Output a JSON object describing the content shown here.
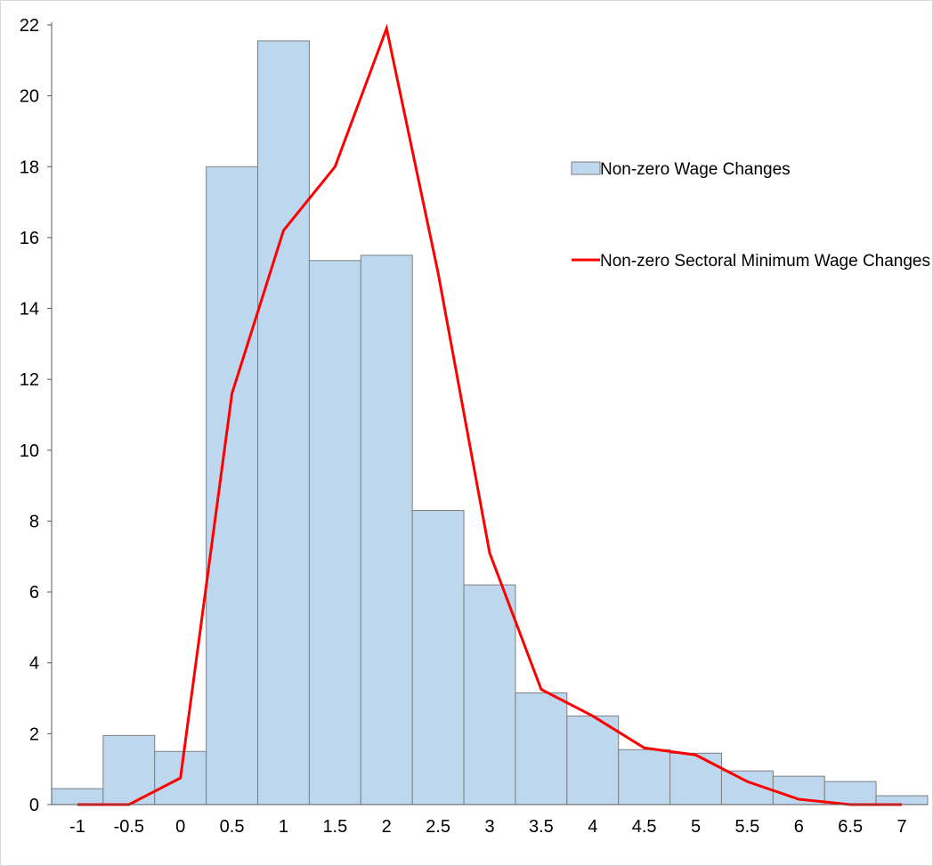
{
  "chart_data": {
    "type": "bar",
    "title": "",
    "xlabel": "",
    "ylabel": "",
    "ylim": [
      0,
      22
    ],
    "yticks": [
      0,
      2,
      4,
      6,
      8,
      10,
      12,
      14,
      16,
      18,
      20,
      22
    ],
    "categories": [
      "-1",
      "-0.5",
      "0",
      "0.5",
      "1",
      "1.5",
      "2",
      "2.5",
      "3",
      "3.5",
      "4",
      "4.5",
      "5",
      "5.5",
      "6",
      "6.5",
      "7"
    ],
    "grid": false,
    "legend_position": "right",
    "series": [
      {
        "name": "Non-zero Wage Changes",
        "type": "bar",
        "color": "#bdd7ee",
        "edge_color": "#7f7f7f",
        "bin_edges": [
          -1.25,
          -0.75,
          -0.25,
          0.25,
          0.75,
          1.25,
          1.75,
          2.25,
          2.75,
          3.25,
          3.75,
          4.25,
          4.75,
          5.25,
          5.75,
          6.25,
          6.75,
          7.25
        ],
        "values": [
          0.45,
          1.95,
          1.5,
          18.0,
          21.55,
          15.35,
          15.5,
          8.3,
          6.2,
          3.15,
          2.5,
          1.55,
          1.45,
          0.95,
          0.8,
          0.65,
          0.25
        ]
      },
      {
        "name": "Non-zero Sectoral Minimum Wage Changes",
        "type": "line",
        "color": "#ff0000",
        "x": [
          -1,
          -0.5,
          0,
          0.5,
          1,
          1.5,
          2,
          2.5,
          3,
          3.5,
          4,
          4.5,
          5,
          5.5,
          6,
          6.5,
          7
        ],
        "values": [
          0,
          0,
          0.75,
          11.6,
          16.2,
          18.0,
          21.9,
          15.0,
          7.1,
          3.25,
          2.5,
          1.6,
          1.4,
          0.65,
          0.15,
          0,
          0
        ]
      }
    ]
  }
}
